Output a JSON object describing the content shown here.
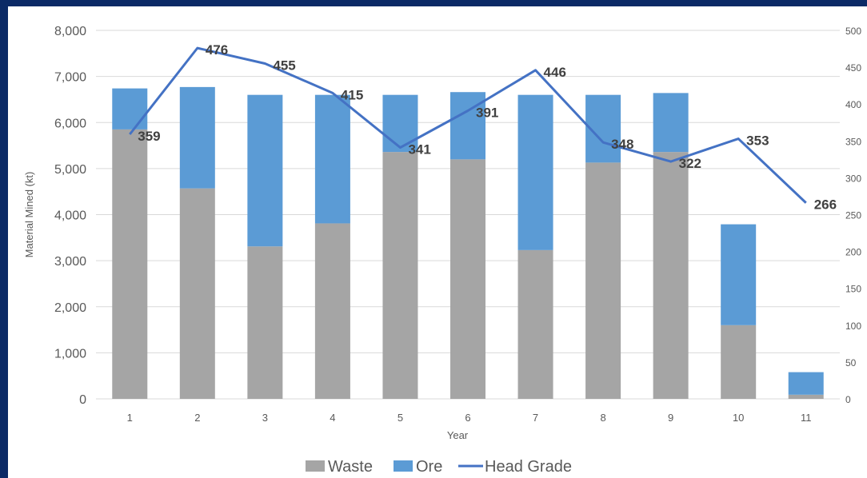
{
  "chart_data": {
    "type": "bar",
    "stacked": true,
    "categories": [
      "1",
      "2",
      "3",
      "4",
      "5",
      "6",
      "7",
      "8",
      "9",
      "10",
      "11"
    ],
    "series": [
      {
        "name": "Waste",
        "kind": "bar",
        "color": "#a5a5a5",
        "values": [
          5850,
          4570,
          3310,
          3810,
          5360,
          5200,
          3230,
          5130,
          5360,
          1600,
          90
        ]
      },
      {
        "name": "Ore",
        "kind": "bar",
        "color": "#5b9bd5",
        "values": [
          890,
          2200,
          3290,
          2790,
          1240,
          1460,
          3370,
          1470,
          1280,
          2190,
          490
        ]
      },
      {
        "name": "Head Grade",
        "kind": "line",
        "axis": "right",
        "color": "#4472c4",
        "values": [
          359,
          476,
          455,
          415,
          341,
          391,
          446,
          348,
          322,
          353,
          266
        ]
      }
    ],
    "line_labels": [
      "359",
      "476",
      "455",
      "415",
      "341",
      "391",
      "446",
      "348",
      "322",
      "353",
      "266"
    ],
    "xlabel": "Year",
    "ylabel": "Material Mined (kt)",
    "ylim": [
      0,
      8000
    ],
    "y2lim": [
      0,
      500
    ],
    "yticks": [
      "0",
      "1,000",
      "2,000",
      "3,000",
      "4,000",
      "5,000",
      "6,000",
      "7,000",
      "8,000"
    ],
    "y2ticks": [
      "0",
      "50",
      "100",
      "150",
      "200",
      "250",
      "300",
      "350",
      "400",
      "450",
      "500"
    ],
    "grid": true,
    "legend": {
      "position": "bottom",
      "entries": [
        "Waste",
        "Ore",
        "Head Grade"
      ]
    }
  }
}
